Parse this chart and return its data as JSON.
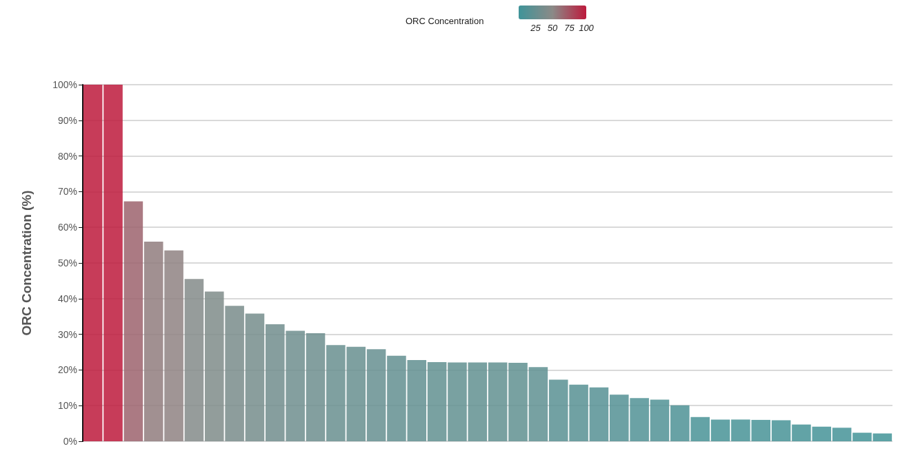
{
  "chart_data": {
    "type": "bar",
    "ylabel": "ORC Concentration (%)",
    "clabel": "ORC Concentration",
    "categories": [
      null,
      null,
      null,
      null,
      null,
      null,
      null,
      null,
      null,
      null,
      null,
      null,
      null,
      null,
      null,
      null,
      null,
      null,
      null,
      null,
      null,
      null,
      null,
      null,
      null,
      null,
      null,
      null,
      null,
      null,
      null,
      null,
      null,
      null,
      null,
      null,
      null,
      null,
      null,
      null
    ],
    "values": [
      100,
      100,
      67.3,
      56,
      53.5,
      45.5,
      42,
      38,
      35.8,
      32.8,
      31,
      30.3,
      27,
      26.5,
      25.8,
      24,
      22.8,
      22.2,
      22.1,
      22.1,
      22.1,
      22,
      20.8,
      17.3,
      15.9,
      15.1,
      13.1,
      12.1,
      11.7,
      10.1,
      6.8,
      6.1,
      6.1,
      6.0,
      5.9,
      4.7,
      4.1,
      3.8,
      2.4,
      2.2
    ],
    "ylim": [
      0,
      100
    ],
    "yticks": [
      {
        "value": 0,
        "label": "0%"
      },
      {
        "value": 10,
        "label": "10%"
      },
      {
        "value": 20,
        "label": "20%"
      },
      {
        "value": 30,
        "label": "30%"
      },
      {
        "value": 40,
        "label": "40%"
      },
      {
        "value": 50,
        "label": "50%"
      },
      {
        "value": 60,
        "label": "60%"
      },
      {
        "value": 70,
        "label": "70%"
      },
      {
        "value": 80,
        "label": "80%"
      },
      {
        "value": 90,
        "label": "90%"
      },
      {
        "value": 100,
        "label": "100%"
      }
    ],
    "clim": [
      0,
      100
    ],
    "cticks": [
      25,
      50,
      75,
      100
    ],
    "grid": "y"
  }
}
